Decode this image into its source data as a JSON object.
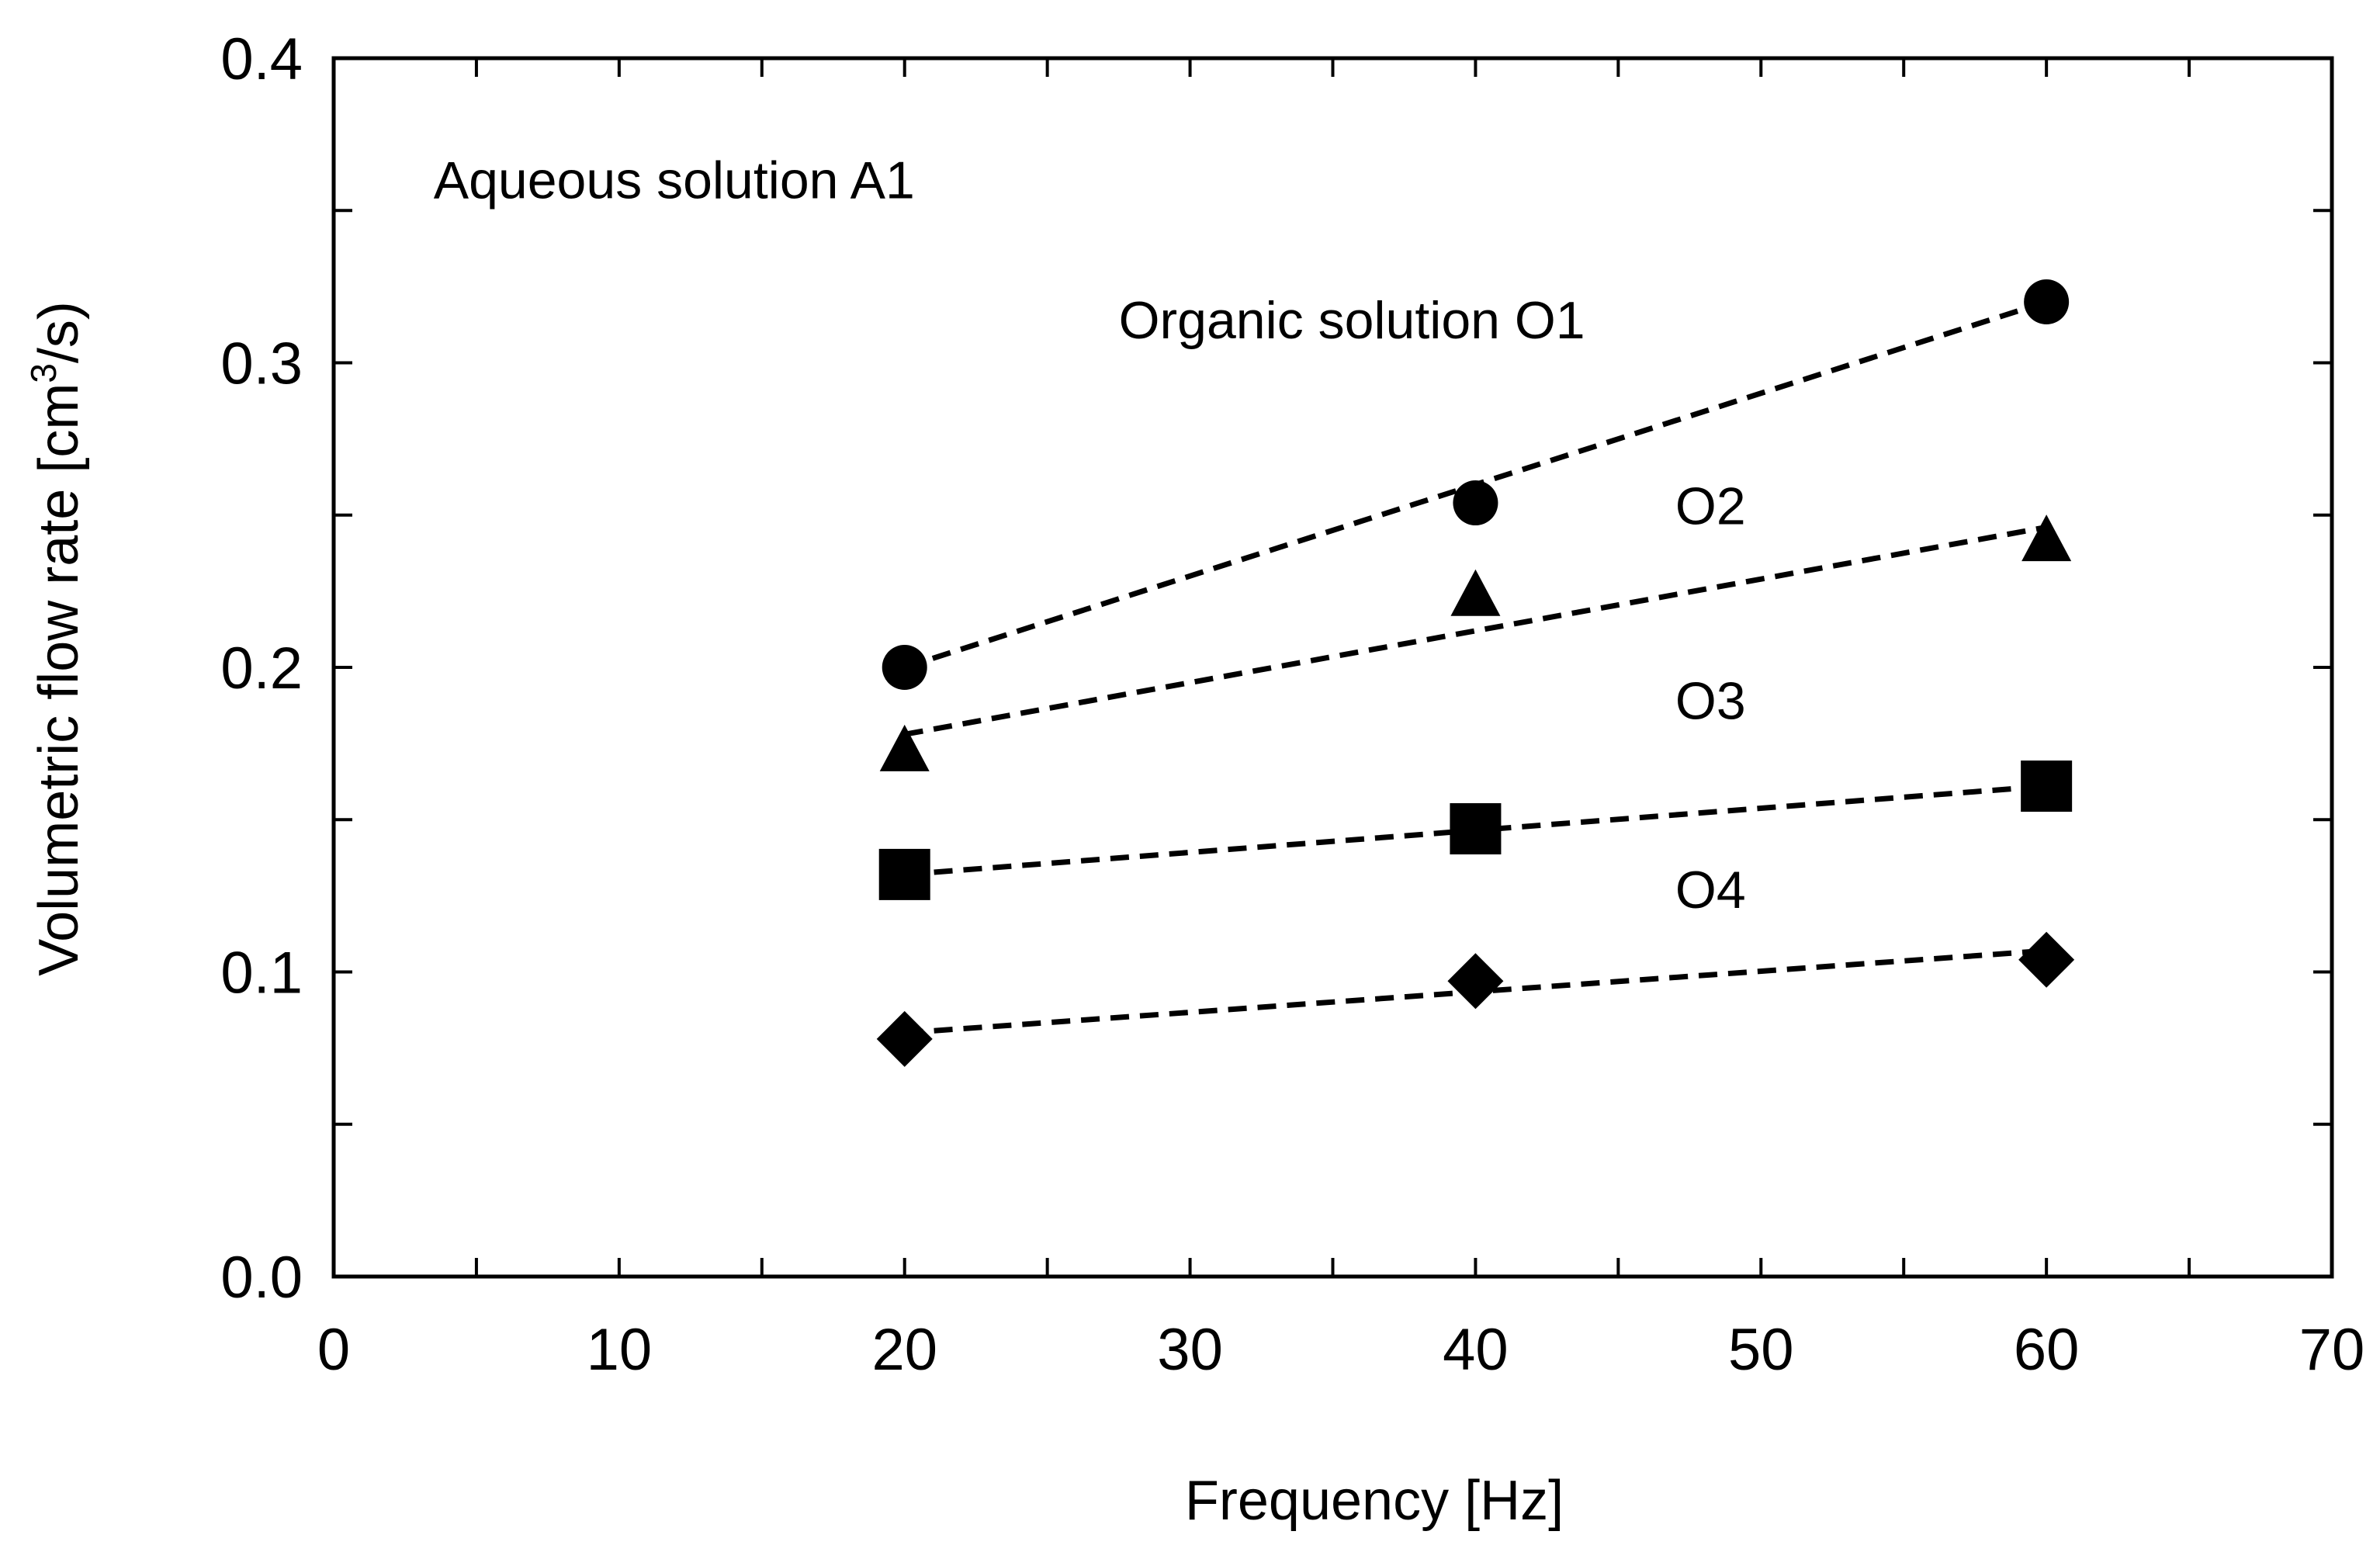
{
  "chart_data": {
    "type": "scatter",
    "title": "",
    "xlabel": "Frequency   [Hz]",
    "ylabel": {
      "prefix": "Volumetric  flow  rate [cm",
      "superscript": "3",
      "suffix": "/s)"
    },
    "xlim": [
      0,
      70
    ],
    "ylim": [
      0.0,
      0.4
    ],
    "xticks": [
      0,
      10,
      20,
      30,
      40,
      50,
      60,
      70
    ],
    "xtick_labels": [
      "0",
      "10",
      "20",
      "30",
      "40",
      "50",
      "60",
      "70"
    ],
    "yticks": [
      0.0,
      0.1,
      0.2,
      0.3,
      0.4
    ],
    "ytick_labels": [
      "0.0",
      "0.1",
      "0.2",
      "0.3",
      "0.4"
    ],
    "grid": false,
    "legend": "none",
    "annotations": [
      {
        "text": "Aqueous solution A1",
        "x": 3.5,
        "y": 0.354
      },
      {
        "text": "Organic solution O1",
        "x": 27.5,
        "y": 0.308
      },
      {
        "text": "O2",
        "x": 47.0,
        "y": 0.247
      },
      {
        "text": "O3",
        "x": 47.0,
        "y": 0.183
      },
      {
        "text": "O4",
        "x": 47.0,
        "y": 0.121
      }
    ],
    "series": [
      {
        "marker": "circle",
        "x": [
          20,
          40,
          60
        ],
        "values": [
          0.2,
          0.254,
          0.32
        ],
        "fit": [
          [
            20,
            0.2
          ],
          [
            60,
            0.32
          ]
        ]
      },
      {
        "marker": "triangle",
        "x": [
          20,
          40,
          60
        ],
        "values": [
          0.172,
          0.223,
          0.241
        ],
        "fit": [
          [
            20,
            0.178
          ],
          [
            60,
            0.246
          ]
        ]
      },
      {
        "marker": "square",
        "x": [
          20,
          40,
          60
        ],
        "values": [
          0.132,
          0.147,
          0.161
        ],
        "fit": [
          [
            20,
            0.132
          ],
          [
            60,
            0.161
          ]
        ]
      },
      {
        "marker": "diamond",
        "x": [
          20,
          40,
          60
        ],
        "values": [
          0.078,
          0.097,
          0.104
        ],
        "fit": [
          [
            20,
            0.08
          ],
          [
            60,
            0.107
          ]
        ]
      }
    ]
  }
}
